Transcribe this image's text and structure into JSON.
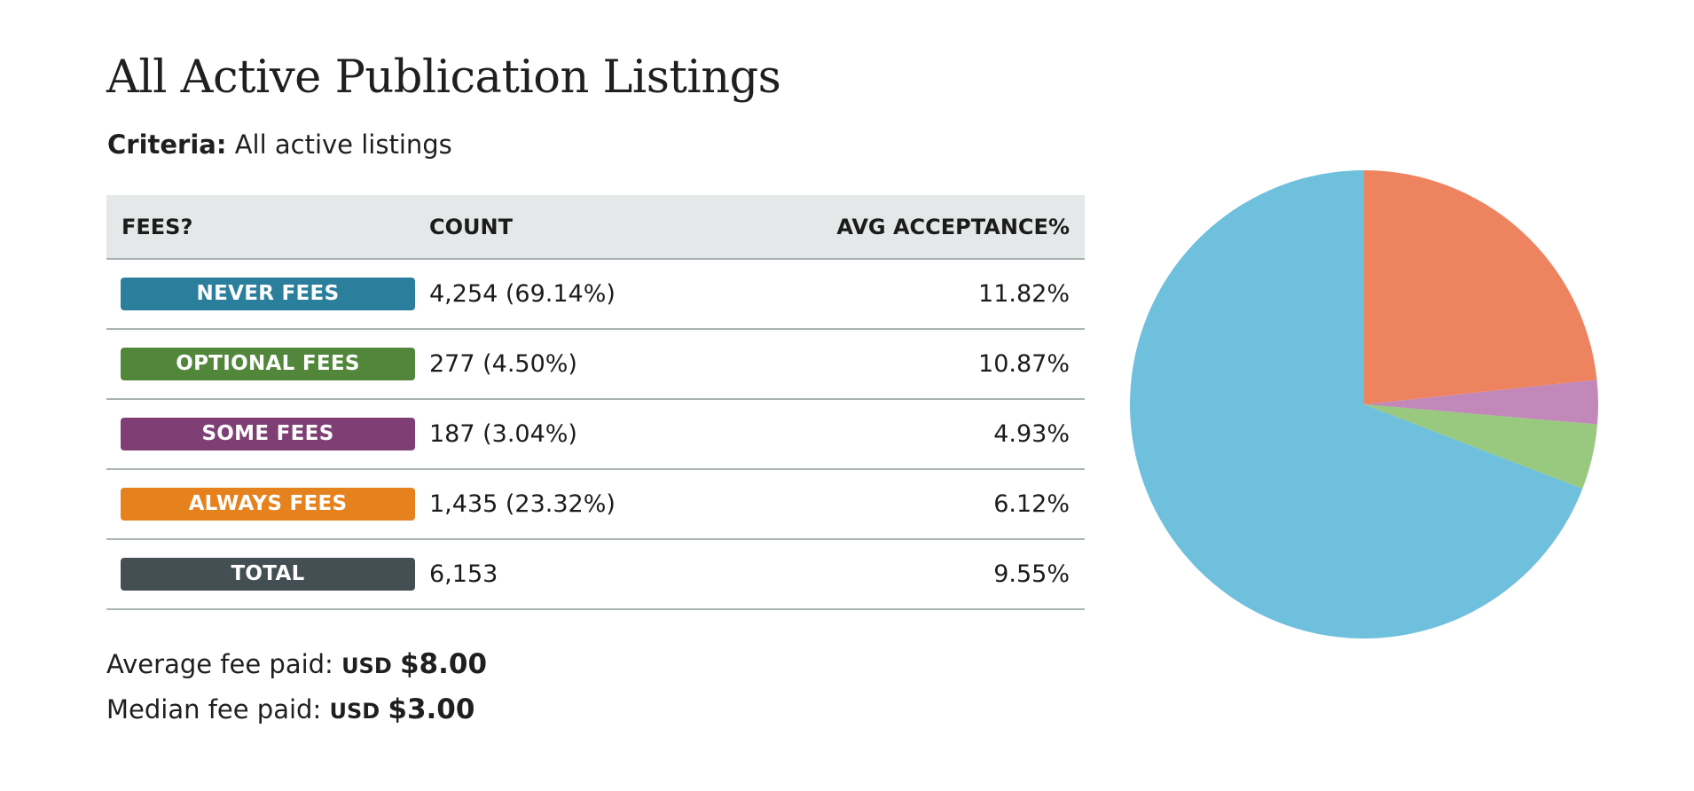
{
  "title": "All Active Publication Listings",
  "criteria": {
    "label": "Criteria:",
    "value": "All active listings"
  },
  "table": {
    "headers": [
      "FEES?",
      "COUNT",
      "AVG ACCEPTANCE%"
    ],
    "rows": [
      {
        "label": "NEVER FEES",
        "count": "4,254 (69.14%)",
        "acceptance": "11.82%",
        "color": "#2b7f9c"
      },
      {
        "label": "OPTIONAL FEES",
        "count": "277 (4.50%)",
        "acceptance": "10.87%",
        "color": "#52873b"
      },
      {
        "label": "SOME FEES",
        "count": "187 (3.04%)",
        "acceptance": "4.93%",
        "color": "#7f3f74"
      },
      {
        "label": "ALWAYS FEES",
        "count": "1,435 (23.32%)",
        "acceptance": "6.12%",
        "color": "#e6821e"
      },
      {
        "label": "TOTAL",
        "count": "6,153",
        "acceptance": "9.55%",
        "color": "#444f54"
      }
    ]
  },
  "stats": {
    "average": {
      "label": "Average fee paid:",
      "currency": "USD",
      "amount": "$8.00"
    },
    "median": {
      "label": "Median fee paid:",
      "currency": "USD",
      "amount": "$3.00"
    }
  },
  "chart_data": {
    "type": "pie",
    "categories": [
      "NEVER FEES",
      "OPTIONAL FEES",
      "SOME FEES",
      "ALWAYS FEES"
    ],
    "values": [
      4254,
      277,
      187,
      1435
    ],
    "colors": [
      "#6fc0dc",
      "#98c97f",
      "#c388ba",
      "#ee845f"
    ],
    "start_angle_deg": 90,
    "direction": "counterclockwise"
  }
}
